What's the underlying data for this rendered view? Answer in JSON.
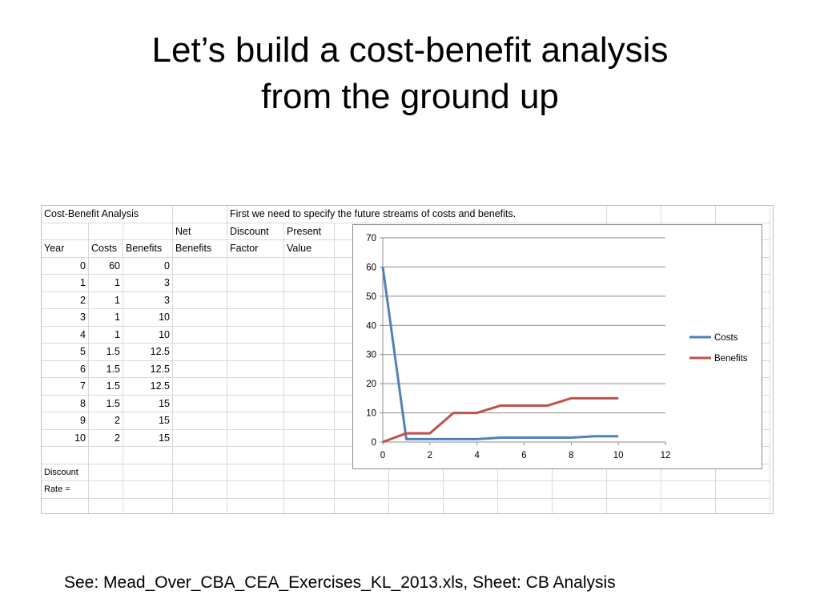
{
  "slide": {
    "title_line1": "Let’s build a cost-benefit analysis",
    "title_line2": "from the ground up",
    "footer": "See: Mead_Over_CBA_CEA_Exercises_KL_2013.xls, Sheet: CB Analysis"
  },
  "sheet": {
    "title": "Cost-Benefit Analysis",
    "note": "First we need to specify the future streams of costs and benefits.",
    "headers": {
      "net": "Net",
      "discount": "Discount",
      "present": "Present",
      "year": "Year",
      "costs": "Costs",
      "benefits": "Benefits",
      "net_benefits": "Benefits",
      "factor": "Factor",
      "value": "Value"
    },
    "rows": [
      {
        "year": "0",
        "costs": "60",
        "benefits": "0"
      },
      {
        "year": "1",
        "costs": "1",
        "benefits": "3"
      },
      {
        "year": "2",
        "costs": "1",
        "benefits": "3"
      },
      {
        "year": "3",
        "costs": "1",
        "benefits": "10"
      },
      {
        "year": "4",
        "costs": "1",
        "benefits": "10"
      },
      {
        "year": "5",
        "costs": "1.5",
        "benefits": "12.5"
      },
      {
        "year": "6",
        "costs": "1.5",
        "benefits": "12.5"
      },
      {
        "year": "7",
        "costs": "1.5",
        "benefits": "12.5"
      },
      {
        "year": "8",
        "costs": "1.5",
        "benefits": "15"
      },
      {
        "year": "9",
        "costs": "2",
        "benefits": "15"
      },
      {
        "year": "10",
        "costs": "2",
        "benefits": "15"
      }
    ],
    "discount_label": "Discount",
    "rate_label": "Rate ="
  },
  "chart_data": {
    "type": "line",
    "x": [
      0,
      1,
      2,
      3,
      4,
      5,
      6,
      7,
      8,
      9,
      10
    ],
    "series": [
      {
        "name": "Costs",
        "color": "#4f81bd",
        "values": [
          60,
          1,
          1,
          1,
          1,
          1.5,
          1.5,
          1.5,
          1.5,
          2,
          2
        ]
      },
      {
        "name": "Benefits",
        "color": "#c0504d",
        "values": [
          0,
          3,
          3,
          10,
          10,
          12.5,
          12.5,
          12.5,
          15,
          15,
          15
        ]
      }
    ],
    "xlim": [
      0,
      12
    ],
    "ylim": [
      0,
      70
    ],
    "xticks": [
      0,
      2,
      4,
      6,
      8,
      10,
      12
    ],
    "yticks": [
      0,
      10,
      20,
      30,
      40,
      50,
      60,
      70
    ],
    "grid": "horizontal",
    "legend": "right"
  }
}
